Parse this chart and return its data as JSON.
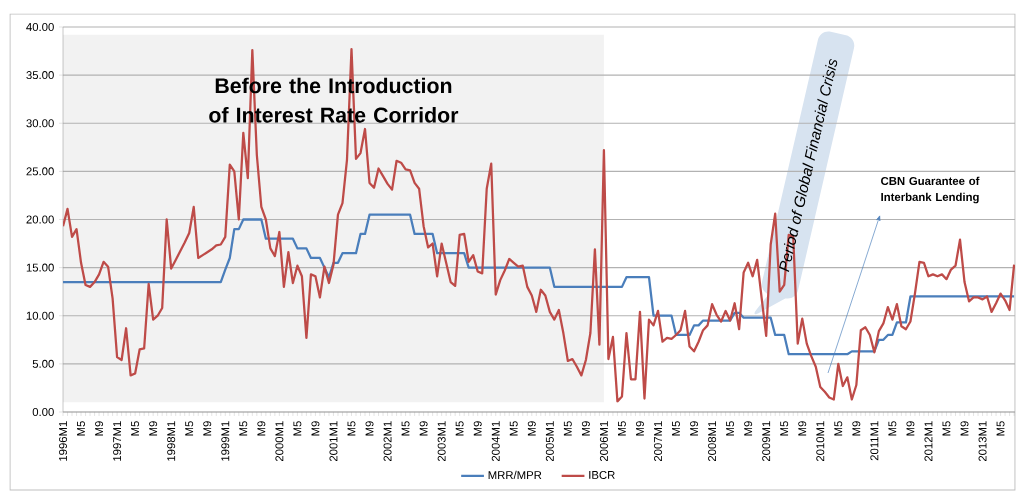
{
  "chart_data": {
    "type": "line",
    "categories": [
      "1996M1",
      null,
      null,
      null,
      "M5",
      null,
      null,
      null,
      "M9",
      null,
      null,
      null,
      "1997M1",
      null,
      null,
      null,
      "M5",
      null,
      null,
      null,
      "M9",
      null,
      null,
      null,
      "1998M1",
      null,
      null,
      null,
      "M5",
      null,
      null,
      null,
      "M9",
      null,
      null,
      null,
      "1999M1",
      null,
      null,
      null,
      "M5",
      null,
      null,
      null,
      "M9",
      null,
      null,
      null,
      "2000M1",
      null,
      null,
      null,
      "M5",
      null,
      null,
      null,
      "M9",
      null,
      null,
      null,
      "2001M1",
      null,
      null,
      null,
      "M5",
      null,
      null,
      null,
      "M9",
      null,
      null,
      null,
      "2002M1",
      null,
      null,
      null,
      "M5",
      null,
      null,
      null,
      "M9",
      null,
      null,
      null,
      "2003M1",
      null,
      null,
      null,
      "M5",
      null,
      null,
      null,
      "M9",
      null,
      null,
      null,
      "2004M1",
      null,
      null,
      null,
      "M5",
      null,
      null,
      null,
      "M9",
      null,
      null,
      null,
      "2005M1",
      null,
      null,
      null,
      "M5",
      null,
      null,
      null,
      "M9",
      null,
      null,
      null,
      "2006M1",
      null,
      null,
      null,
      "M5",
      null,
      null,
      null,
      "M9",
      null,
      null,
      null,
      "2007M1",
      null,
      null,
      null,
      "M5",
      null,
      null,
      null,
      "M9",
      null,
      null,
      null,
      "2008M1",
      null,
      null,
      null,
      "M5",
      null,
      null,
      null,
      "M9",
      null,
      null,
      null,
      "2009M1",
      null,
      null,
      null,
      "M5",
      null,
      null,
      null,
      "M9",
      null,
      null,
      null,
      "2010M1",
      null,
      null,
      null,
      "M5",
      null,
      null,
      null,
      "M9",
      null,
      null,
      null,
      "2011M1",
      null,
      null,
      null,
      "M5",
      null,
      null,
      null,
      "M9",
      null,
      null,
      null,
      "2012M1",
      null,
      null,
      null,
      "M5",
      null,
      null,
      null,
      "M9",
      null,
      null,
      null,
      "2013M1",
      null,
      null,
      null,
      "M5",
      null,
      null,
      null
    ],
    "series": [
      {
        "name": "MRR/MPR",
        "color": "#4a7ebb",
        "values": [
          13.5,
          13.5,
          13.5,
          13.5,
          13.5,
          13.5,
          13.5,
          13.5,
          13.5,
          13.5,
          13.5,
          13.5,
          13.5,
          13.5,
          13.5,
          13.5,
          13.5,
          13.5,
          13.5,
          13.5,
          13.5,
          13.5,
          13.5,
          13.5,
          13.5,
          13.5,
          13.5,
          13.5,
          13.5,
          13.5,
          13.5,
          13.5,
          13.5,
          13.5,
          13.5,
          13.5,
          14.8,
          16,
          19,
          19,
          20,
          20,
          20,
          20,
          20,
          18,
          18,
          18,
          18,
          18,
          18,
          18,
          17,
          17,
          17,
          16,
          16,
          16,
          15,
          14,
          15.5,
          15.5,
          16.5,
          16.5,
          16.5,
          16.5,
          18.5,
          18.5,
          20.5,
          20.5,
          20.5,
          20.5,
          20.5,
          20.5,
          20.5,
          20.5,
          20.5,
          20.5,
          18.5,
          18.5,
          18.5,
          18.5,
          18.5,
          16.5,
          16.5,
          16.5,
          16.5,
          16.5,
          16.5,
          16.5,
          15,
          15,
          15,
          15,
          15,
          15,
          15,
          15,
          15,
          15,
          15,
          15,
          15,
          15,
          15,
          15,
          15,
          15,
          15,
          13,
          13,
          13,
          13,
          13,
          13,
          13,
          13,
          13,
          13,
          13,
          13,
          13,
          13,
          13,
          13,
          14,
          14,
          14,
          14,
          14,
          14,
          10,
          10,
          10,
          10,
          10,
          8,
          8,
          8,
          8,
          9,
          9,
          9.5,
          9.5,
          9.5,
          9.5,
          9.5,
          9.5,
          9.5,
          10.3,
          10.3,
          9.8,
          9.8,
          9.8,
          9.8,
          9.8,
          9.8,
          9.8,
          8,
          8,
          8,
          6,
          6,
          6,
          6,
          6,
          6,
          6,
          6,
          6,
          6,
          6,
          6,
          6,
          6,
          6.3,
          6.3,
          6.3,
          6.3,
          6.3,
          6.3,
          7.5,
          7.5,
          8,
          8,
          9.3,
          9.3,
          9.3,
          12,
          12,
          12,
          12,
          12,
          12,
          12,
          12,
          12,
          12,
          12,
          12,
          12,
          12,
          12,
          12,
          12,
          12,
          12,
          12,
          12,
          12,
          12,
          12
        ]
      },
      {
        "name": "IBCR",
        "color": "#be4b48",
        "values": [
          19.3,
          21.1,
          18.2,
          19.0,
          15.5,
          13.2,
          13.0,
          13.5,
          14.3,
          15.6,
          15.1,
          11.8,
          5.7,
          5.4,
          8.7,
          3.8,
          4.0,
          6.5,
          6.6,
          13.3,
          9.6,
          10.0,
          10.8,
          20.0,
          14.9,
          15.8,
          16.7,
          17.6,
          18.6,
          21.3,
          16.0,
          16.3,
          16.6,
          16.9,
          17.3,
          17.4,
          18.2,
          25.7,
          25.0,
          20.0,
          29.0,
          24.3,
          37.6,
          26.7,
          21.3,
          20.0,
          17.0,
          16.2,
          18.7,
          13.0,
          16.6,
          13.4,
          15.2,
          14.1,
          7.7,
          14.3,
          14.1,
          11.9,
          15.1,
          13.4,
          15.3,
          20.5,
          21.7,
          26.2,
          37.7,
          26.3,
          26.9,
          29.4,
          23.8,
          23.3,
          25.3,
          24.5,
          23.7,
          23.1,
          26.1,
          25.9,
          25.2,
          25.1,
          23.8,
          23.2,
          19.3,
          17.1,
          17.5,
          14.1,
          17.5,
          15.5,
          13.5,
          13.1,
          18.4,
          18.5,
          15.6,
          16.3,
          14.6,
          14.4,
          23.2,
          25.8,
          12.2,
          13.7,
          14.7,
          15.9,
          15.5,
          15.1,
          15.2,
          13.0,
          12.1,
          10.4,
          12.7,
          12.1,
          10.4,
          9.6,
          10.6,
          8.2,
          5.3,
          5.5,
          4.7,
          3.8,
          5.4,
          8.2,
          16.9,
          7.0,
          27.2,
          5.5,
          7.8,
          1.1,
          1.6,
          8.2,
          3.4,
          3.4,
          10.4,
          1.4,
          9.6,
          9.0,
          10.5,
          7.3,
          7.7,
          7.6,
          8.0,
          8.5,
          10.5,
          6.8,
          6.3,
          7.3,
          8.5,
          9.0,
          11.2,
          10.1,
          9.4,
          10.5,
          9.5,
          11.3,
          8.6,
          14.5,
          15.5,
          14.1,
          15.8,
          11.8,
          7.9,
          17.4,
          20.6,
          12.5,
          13.2,
          18.4,
          18.2,
          7.1,
          9.7,
          7.1,
          5.8,
          4.7,
          2.6,
          2.1,
          1.5,
          1.3,
          5.0,
          2.7,
          3.6,
          1.3,
          2.8,
          8.5,
          8.8,
          8.0,
          6.2,
          8.4,
          9.2,
          10.9,
          9.6,
          11.2,
          8.9,
          8.6,
          9.4,
          12.3,
          15.6,
          15.5,
          14.1,
          14.3,
          14.1,
          14.3,
          13.8,
          14.8,
          15.2,
          17.9,
          13.5,
          11.5,
          11.9,
          11.9,
          11.7,
          12.0,
          10.4,
          11.3,
          12.3,
          11.6,
          10.6,
          15.3
        ]
      }
    ],
    "ylim": [
      0,
      40
    ],
    "yticks": [
      {
        "value": 0,
        "label": "0.00"
      },
      {
        "value": 5,
        "label": "5.00"
      },
      {
        "value": 10,
        "label": "10.00"
      },
      {
        "value": 15,
        "label": "15.00"
      },
      {
        "value": 20,
        "label": "20.00"
      },
      {
        "value": 25,
        "label": "25.00"
      },
      {
        "value": 30,
        "label": "30.00"
      },
      {
        "value": 35,
        "label": "35.00"
      },
      {
        "value": 40,
        "label": "40.00"
      }
    ],
    "grid": "y",
    "legend": "bottom",
    "marker": "none",
    "line_style": "solid",
    "bands": [
      {
        "axis": "x",
        "from": "1996M1",
        "to": "2006M1",
        "label": "Before the Introduction of Interest Rate Corridor",
        "color": "#f2f2f2"
      }
    ],
    "annotations": [
      "Period of Global Financial Crisis",
      "CBN Guarantee of Interbank Lending"
    ]
  }
}
